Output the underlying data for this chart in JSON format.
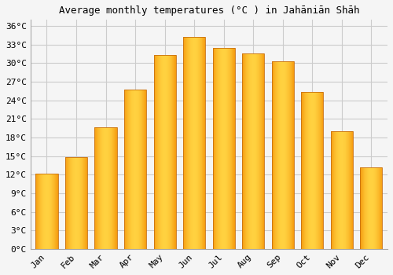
{
  "title": "Average monthly temperatures (°C ) in Jahāniān Shāh",
  "months": [
    "Jan",
    "Feb",
    "Mar",
    "Apr",
    "May",
    "Jun",
    "Jul",
    "Aug",
    "Sep",
    "Oct",
    "Nov",
    "Dec"
  ],
  "temperatures": [
    12.1,
    14.8,
    19.7,
    25.8,
    31.3,
    34.3,
    32.5,
    31.6,
    30.3,
    25.4,
    19.0,
    13.2
  ],
  "bar_color_left": "#F59B10",
  "bar_color_mid": "#FDD040",
  "bar_color_right": "#F59B10",
  "bar_border_color": "#C87010",
  "ylim": [
    0,
    37
  ],
  "yticks": [
    0,
    3,
    6,
    9,
    12,
    15,
    18,
    21,
    24,
    27,
    30,
    33,
    36
  ],
  "ytick_labels": [
    "0°C",
    "3°C",
    "6°C",
    "9°C",
    "12°C",
    "15°C",
    "18°C",
    "21°C",
    "24°C",
    "27°C",
    "30°C",
    "33°C",
    "36°C"
  ],
  "bg_color": "#f5f5f5",
  "grid_color": "#cccccc",
  "title_fontsize": 9,
  "tick_fontsize": 8
}
